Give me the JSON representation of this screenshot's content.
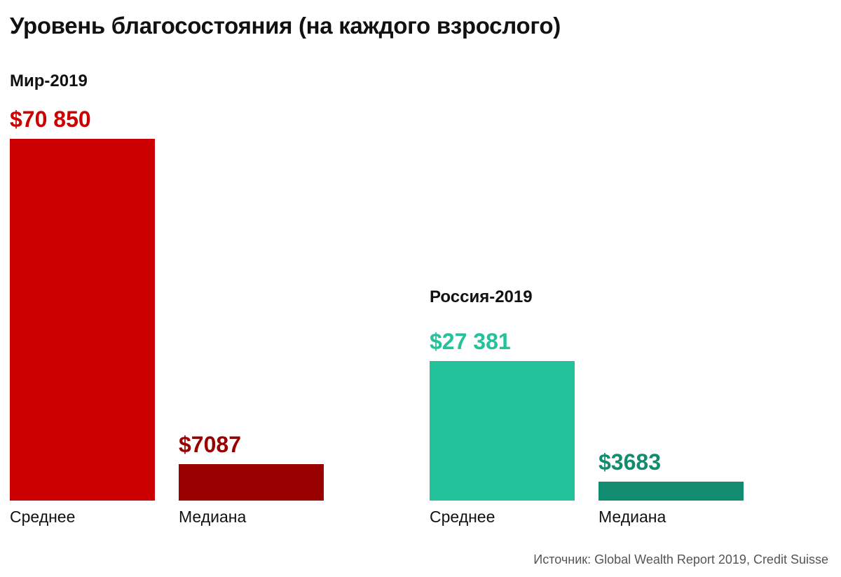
{
  "chart_data": {
    "type": "bar",
    "title": "Уровень благосостояния (на каждого взрослого)",
    "groups": [
      {
        "name": "Мир-2019",
        "bars": [
          {
            "category": "Среднее",
            "value": 70850,
            "label": "$70 850",
            "color": "#cc0000"
          },
          {
            "category": "Медиана",
            "value": 7087,
            "label": "$7087",
            "color": "#990000"
          }
        ]
      },
      {
        "name": "Россия-2019",
        "bars": [
          {
            "category": "Среднее",
            "value": 27381,
            "label": "$27 381",
            "color": "#22c29b"
          },
          {
            "category": "Медиана",
            "value": 3683,
            "label": "$3683",
            "color": "#118c6f"
          }
        ]
      }
    ],
    "source": "Источник: Global Wealth Report 2019, Credit Suisse"
  }
}
